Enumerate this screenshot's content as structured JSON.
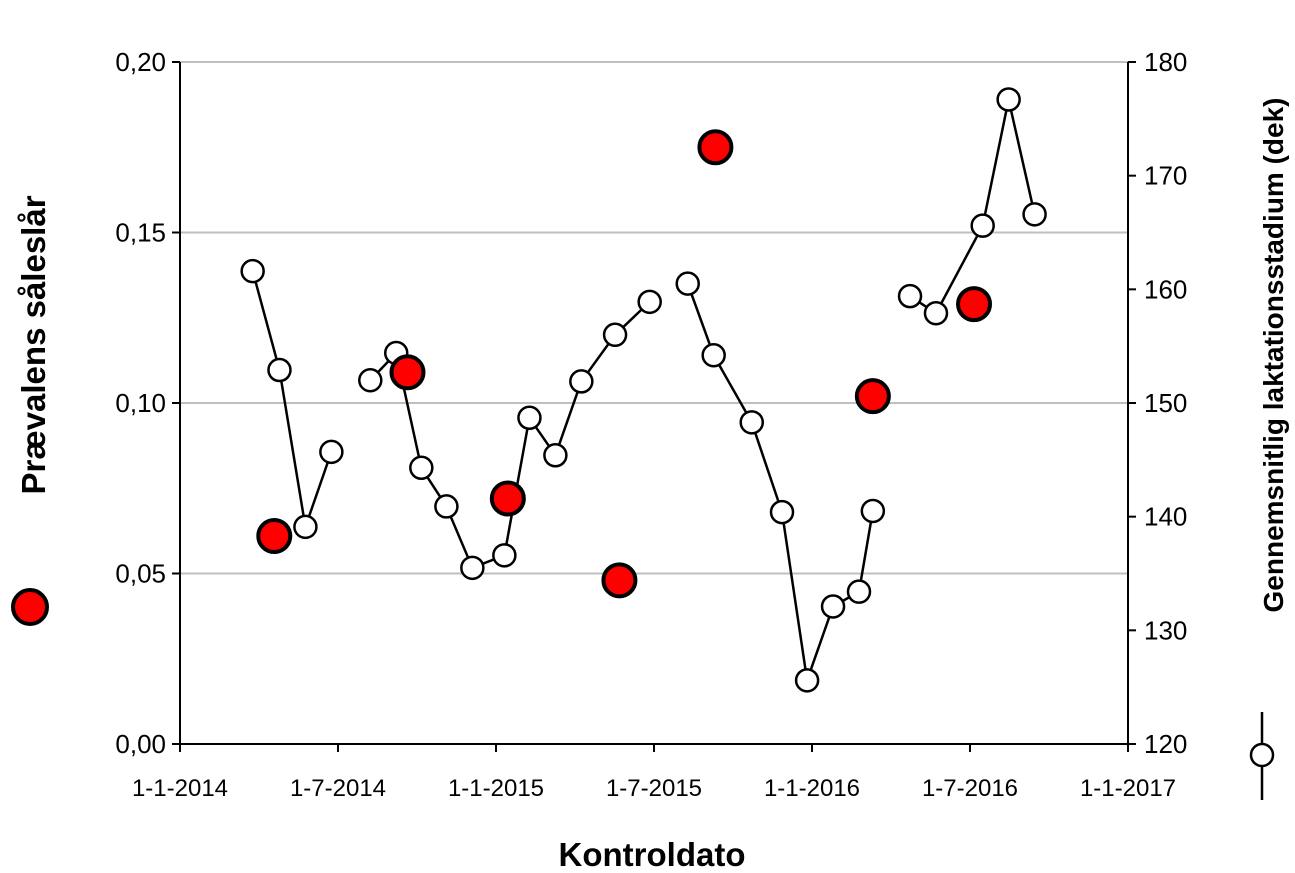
{
  "chart_data": {
    "type": "scatter",
    "xlabel": "Kontroldato",
    "ylabel_left": "Prævalens såleslår",
    "ylabel_right": "Gennemsnitlig laktationsstadium (dek)",
    "x_ticks": [
      "1-1-2014",
      "1-7-2014",
      "1-1-2015",
      "1-7-2015",
      "1-1-2016",
      "1-7-2016",
      "1-1-2017"
    ],
    "y_left_ticks": [
      "0,00",
      "0,05",
      "0,10",
      "0,15",
      "0,20"
    ],
    "y_right_ticks": [
      "120",
      "130",
      "140",
      "150",
      "160",
      "170",
      "180"
    ],
    "xlim": [
      "2014-01-01",
      "2017-01-01"
    ],
    "ylim_left": [
      0,
      0.2
    ],
    "ylim_right": [
      120,
      180
    ],
    "grid": "horizontal",
    "colors": {
      "prevalence_fill": "#ff0000",
      "stroke": "#000000",
      "grid": "#bfbfbf"
    },
    "series": [
      {
        "axis": "left",
        "style": "red-filled-markers",
        "points": [
          {
            "x": "2014-04-20",
            "y": 0.061
          },
          {
            "x": "2014-09-21",
            "y": 0.109
          },
          {
            "x": "2015-01-15",
            "y": 0.072
          },
          {
            "x": "2015-05-24",
            "y": 0.048
          },
          {
            "x": "2015-09-12",
            "y": 0.175
          },
          {
            "x": "2016-03-12",
            "y": 0.102
          },
          {
            "x": "2016-07-07",
            "y": 0.129
          }
        ]
      },
      {
        "axis": "right",
        "style": "open-circles-line",
        "segments": [
          [
            {
              "x": "2014-03-26",
              "y": 161.6
            },
            {
              "x": "2014-04-26",
              "y": 152.9
            },
            {
              "x": "2014-05-26",
              "y": 139.1
            },
            {
              "x": "2014-06-25",
              "y": 145.7
            }
          ],
          [
            {
              "x": "2014-08-09",
              "y": 152.0
            },
            {
              "x": "2014-09-08",
              "y": 154.4
            },
            {
              "x": "2014-10-07",
              "y": 144.3
            },
            {
              "x": "2014-11-05",
              "y": 140.9
            },
            {
              "x": "2014-12-05",
              "y": 135.5
            },
            {
              "x": "2015-01-11",
              "y": 136.6
            },
            {
              "x": "2015-02-09",
              "y": 148.7
            },
            {
              "x": "2015-03-11",
              "y": 145.4
            },
            {
              "x": "2015-04-10",
              "y": 151.9
            },
            {
              "x": "2015-05-19",
              "y": 156.0
            },
            {
              "x": "2015-06-28",
              "y": 158.9
            }
          ],
          [
            {
              "x": "2015-08-11",
              "y": 160.5
            },
            {
              "x": "2015-09-10",
              "y": 154.2
            },
            {
              "x": "2015-10-24",
              "y": 148.3
            },
            {
              "x": "2015-11-28",
              "y": 140.4
            },
            {
              "x": "2015-12-27",
              "y": 125.6
            },
            {
              "x": "2016-01-26",
              "y": 132.1
            },
            {
              "x": "2016-02-25",
              "y": 133.4
            },
            {
              "x": "2016-03-12",
              "y": 140.5
            }
          ],
          [
            {
              "x": "2016-04-24",
              "y": 159.4
            },
            {
              "x": "2016-05-24",
              "y": 157.9
            },
            {
              "x": "2016-07-17",
              "y": 165.6
            },
            {
              "x": "2016-08-16",
              "y": 176.7
            },
            {
              "x": "2016-09-15",
              "y": 166.6
            }
          ]
        ]
      }
    ]
  }
}
